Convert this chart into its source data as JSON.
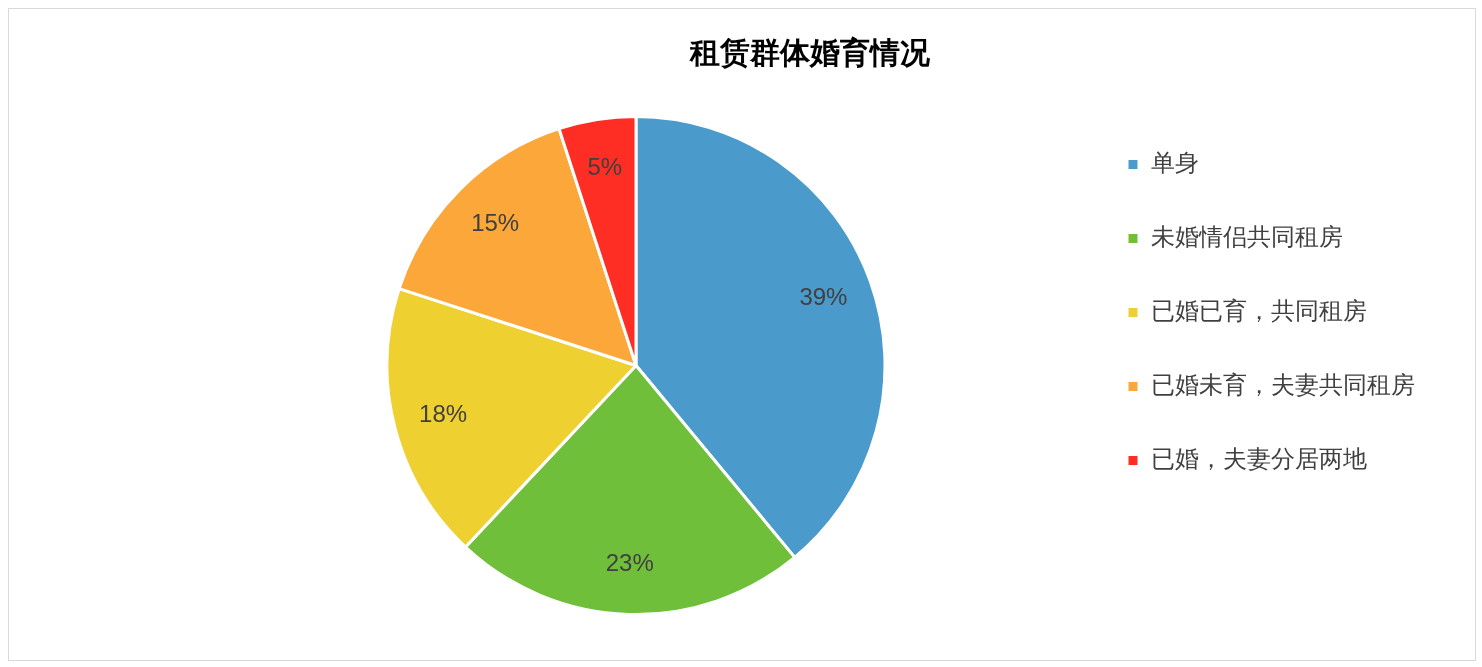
{
  "chart_data": {
    "type": "pie",
    "title": "租赁群体婚育情况",
    "categories": [
      "单身",
      "未婚情侣共同租房",
      "已婚已育，共同租房",
      "已婚未育，夫妻共同租房",
      "已婚，夫妻分居两地"
    ],
    "values": [
      39,
      23,
      18,
      15,
      5
    ],
    "colors": [
      "#4a9bcb",
      "#6fbf3a",
      "#eed030",
      "#fba73a",
      "#fe2e24"
    ],
    "value_labels": [
      "39%",
      "23%",
      "18%",
      "15%",
      "5%"
    ],
    "legend": "right"
  }
}
